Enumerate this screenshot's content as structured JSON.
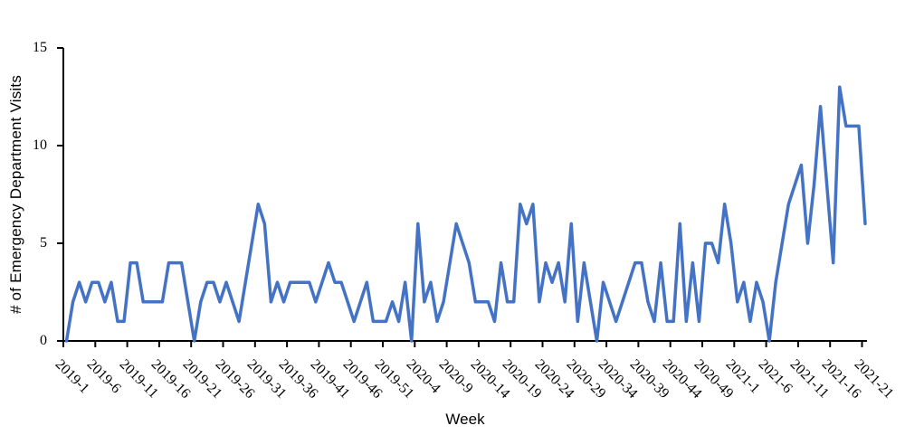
{
  "chart_data": {
    "type": "line",
    "title": "",
    "xlabel": "Week",
    "ylabel": "# of Emergency Department Visits",
    "ylim": [
      0,
      15
    ],
    "yticks": [
      0,
      5,
      10,
      15
    ],
    "grid": false,
    "legend": "none",
    "line_color": "#4472C4",
    "axis_color": "#000000",
    "x_tick_labels": [
      "2019-1",
      "2019-6",
      "2019-11",
      "2019-16",
      "2019-21",
      "2019-26",
      "2019-31",
      "2019-36",
      "2019-41",
      "2019-46",
      "2019-51",
      "2020-4",
      "2020-9",
      "2020-14",
      "2020-19",
      "2020-24",
      "2020-29",
      "2020-34",
      "2020-39",
      "2020-44",
      "2020-49",
      "2021-1",
      "2021-6",
      "2021-11",
      "2021-16",
      "2021-21"
    ],
    "categories": [
      "2019-1",
      "2019-2",
      "2019-3",
      "2019-4",
      "2019-5",
      "2019-6",
      "2019-7",
      "2019-8",
      "2019-9",
      "2019-10",
      "2019-11",
      "2019-12",
      "2019-13",
      "2019-14",
      "2019-15",
      "2019-16",
      "2019-17",
      "2019-18",
      "2019-19",
      "2019-20",
      "2019-21",
      "2019-22",
      "2019-23",
      "2019-24",
      "2019-25",
      "2019-26",
      "2019-27",
      "2019-28",
      "2019-29",
      "2019-30",
      "2019-31",
      "2019-32",
      "2019-33",
      "2019-34",
      "2019-35",
      "2019-36",
      "2019-37",
      "2019-38",
      "2019-39",
      "2019-40",
      "2019-41",
      "2019-42",
      "2019-43",
      "2019-44",
      "2019-45",
      "2019-46",
      "2019-47",
      "2019-48",
      "2019-49",
      "2019-50",
      "2019-51",
      "2019-52",
      "2020-1",
      "2020-2",
      "2020-3",
      "2020-4",
      "2020-5",
      "2020-6",
      "2020-7",
      "2020-8",
      "2020-9",
      "2020-10",
      "2020-11",
      "2020-12",
      "2020-13",
      "2020-14",
      "2020-15",
      "2020-16",
      "2020-17",
      "2020-18",
      "2020-19",
      "2020-20",
      "2020-21",
      "2020-22",
      "2020-23",
      "2020-24",
      "2020-25",
      "2020-26",
      "2020-27",
      "2020-28",
      "2020-29",
      "2020-30",
      "2020-31",
      "2020-32",
      "2020-33",
      "2020-34",
      "2020-35",
      "2020-36",
      "2020-37",
      "2020-38",
      "2020-39",
      "2020-40",
      "2020-41",
      "2020-42",
      "2020-43",
      "2020-44",
      "2020-45",
      "2020-46",
      "2020-47",
      "2020-48",
      "2020-49",
      "2020-50",
      "2020-51",
      "2020-52",
      "2020-53",
      "2021-1",
      "2021-2",
      "2021-3",
      "2021-4",
      "2021-5",
      "2021-6",
      "2021-7",
      "2021-8",
      "2021-9",
      "2021-10",
      "2021-11",
      "2021-12",
      "2021-13",
      "2021-14",
      "2021-15",
      "2021-16",
      "2021-17",
      "2021-18",
      "2021-19",
      "2021-20",
      "2021-21"
    ],
    "values": [
      0,
      2,
      3,
      2,
      3,
      3,
      2,
      3,
      1,
      1,
      4,
      4,
      2,
      2,
      2,
      2,
      4,
      4,
      4,
      2,
      0,
      2,
      3,
      3,
      2,
      3,
      2,
      1,
      3,
      5,
      7,
      6,
      2,
      3,
      2,
      3,
      3,
      3,
      3,
      2,
      3,
      4,
      3,
      3,
      2,
      1,
      2,
      3,
      1,
      1,
      1,
      2,
      1,
      3,
      0,
      6,
      2,
      3,
      1,
      2,
      4,
      6,
      5,
      4,
      2,
      2,
      2,
      1,
      4,
      2,
      2,
      7,
      6,
      7,
      2,
      4,
      3,
      4,
      2,
      6,
      1,
      4,
      2,
      0,
      3,
      2,
      1,
      2,
      3,
      4,
      4,
      2,
      1,
      4,
      1,
      1,
      6,
      1,
      4,
      1,
      5,
      5,
      4,
      7,
      5,
      2,
      3,
      1,
      3,
      2,
      0,
      3,
      5,
      7,
      8,
      9,
      5,
      8,
      12,
      8,
      4,
      13,
      11,
      11,
      11,
      6
    ]
  }
}
